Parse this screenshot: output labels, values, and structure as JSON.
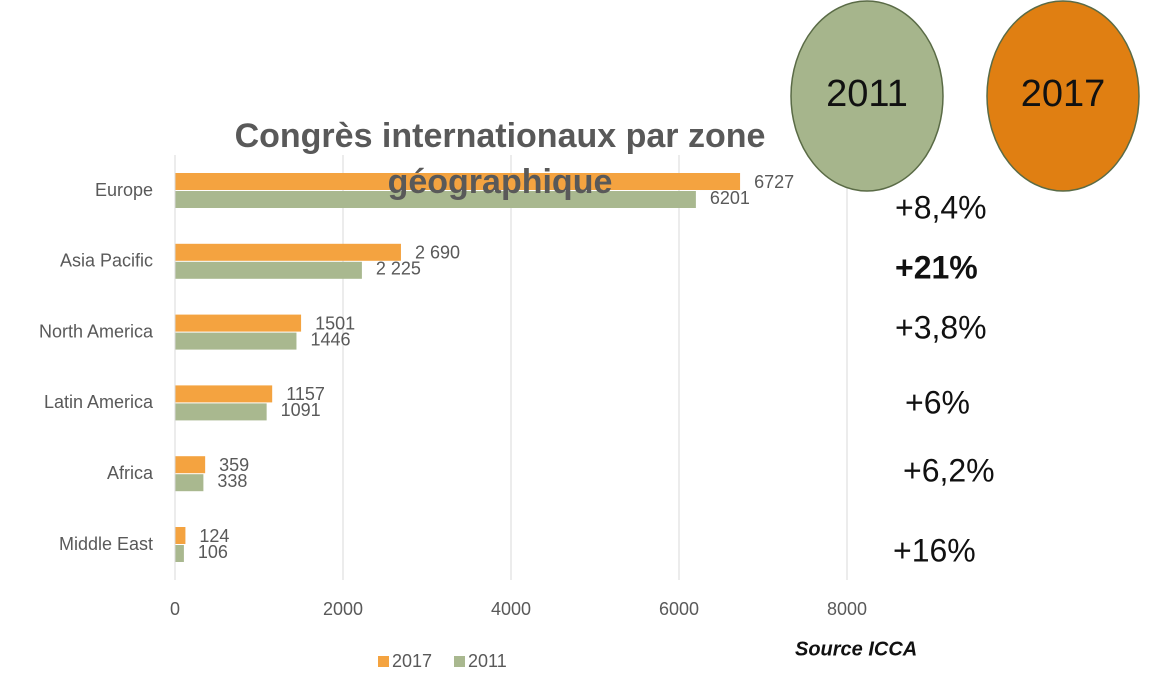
{
  "chart_data": {
    "type": "barh",
    "title": "Congrès internationaux par zone géographique",
    "categories": [
      "Europe",
      "Asia Pacific",
      "North America",
      "Latin America",
      "Africa",
      "Middle East"
    ],
    "series": [
      {
        "name": "2017",
        "color": "#f4a340",
        "values": [
          6727,
          2690,
          1501,
          1157,
          359,
          124
        ],
        "value_labels": [
          "6727",
          "2 690",
          "1501",
          "1157",
          "359",
          "124"
        ]
      },
      {
        "name": "2011",
        "color": "#a9b88f",
        "values": [
          6201,
          2225,
          1446,
          1091,
          338,
          106
        ],
        "value_labels": [
          "6201",
          "2 225",
          "1446",
          "1091",
          "338",
          "106"
        ]
      }
    ],
    "xlim": [
      0,
      8000
    ],
    "xticks": [
      0,
      2000,
      4000,
      6000,
      8000
    ],
    "grid": true,
    "legend": "bottom",
    "annotations": [
      {
        "text": "+8,4%",
        "bold": false
      },
      {
        "text": "+21%",
        "bold": true
      },
      {
        "text": "+3,8%",
        "bold": false
      },
      {
        "text": "+6%",
        "bold": false
      },
      {
        "text": "+6,2%",
        "bold": false
      },
      {
        "text": "+16%",
        "bold": false
      }
    ],
    "badges": [
      {
        "text": "2011",
        "color": "#a6b58c"
      },
      {
        "text": "2017",
        "color": "#e07f12"
      }
    ],
    "source": "Source ICCA"
  }
}
